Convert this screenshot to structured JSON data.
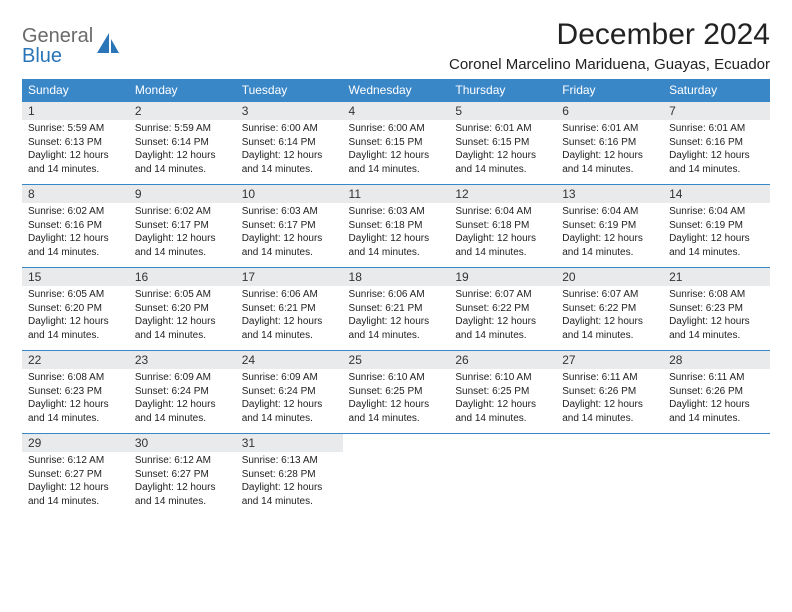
{
  "logo": {
    "line1": "General",
    "line2": "Blue"
  },
  "colors": {
    "header_bg": "#3a87c8",
    "header_fg": "#ffffff",
    "daynum_bg": "#e9eaec",
    "row_divider": "#3a87c8",
    "logo_gray": "#6a6a6a",
    "logo_blue": "#2a74b8"
  },
  "title": "December 2024",
  "location": "Coronel Marcelino Mariduena, Guayas, Ecuador",
  "weekdays": [
    "Sunday",
    "Monday",
    "Tuesday",
    "Wednesday",
    "Thursday",
    "Friday",
    "Saturday"
  ],
  "daylight_text": "Daylight: 12 hours and 14 minutes.",
  "days": [
    {
      "n": 1,
      "sr": "5:59 AM",
      "ss": "6:13 PM"
    },
    {
      "n": 2,
      "sr": "5:59 AM",
      "ss": "6:14 PM"
    },
    {
      "n": 3,
      "sr": "6:00 AM",
      "ss": "6:14 PM"
    },
    {
      "n": 4,
      "sr": "6:00 AM",
      "ss": "6:15 PM"
    },
    {
      "n": 5,
      "sr": "6:01 AM",
      "ss": "6:15 PM"
    },
    {
      "n": 6,
      "sr": "6:01 AM",
      "ss": "6:16 PM"
    },
    {
      "n": 7,
      "sr": "6:01 AM",
      "ss": "6:16 PM"
    },
    {
      "n": 8,
      "sr": "6:02 AM",
      "ss": "6:16 PM"
    },
    {
      "n": 9,
      "sr": "6:02 AM",
      "ss": "6:17 PM"
    },
    {
      "n": 10,
      "sr": "6:03 AM",
      "ss": "6:17 PM"
    },
    {
      "n": 11,
      "sr": "6:03 AM",
      "ss": "6:18 PM"
    },
    {
      "n": 12,
      "sr": "6:04 AM",
      "ss": "6:18 PM"
    },
    {
      "n": 13,
      "sr": "6:04 AM",
      "ss": "6:19 PM"
    },
    {
      "n": 14,
      "sr": "6:04 AM",
      "ss": "6:19 PM"
    },
    {
      "n": 15,
      "sr": "6:05 AM",
      "ss": "6:20 PM"
    },
    {
      "n": 16,
      "sr": "6:05 AM",
      "ss": "6:20 PM"
    },
    {
      "n": 17,
      "sr": "6:06 AM",
      "ss": "6:21 PM"
    },
    {
      "n": 18,
      "sr": "6:06 AM",
      "ss": "6:21 PM"
    },
    {
      "n": 19,
      "sr": "6:07 AM",
      "ss": "6:22 PM"
    },
    {
      "n": 20,
      "sr": "6:07 AM",
      "ss": "6:22 PM"
    },
    {
      "n": 21,
      "sr": "6:08 AM",
      "ss": "6:23 PM"
    },
    {
      "n": 22,
      "sr": "6:08 AM",
      "ss": "6:23 PM"
    },
    {
      "n": 23,
      "sr": "6:09 AM",
      "ss": "6:24 PM"
    },
    {
      "n": 24,
      "sr": "6:09 AM",
      "ss": "6:24 PM"
    },
    {
      "n": 25,
      "sr": "6:10 AM",
      "ss": "6:25 PM"
    },
    {
      "n": 26,
      "sr": "6:10 AM",
      "ss": "6:25 PM"
    },
    {
      "n": 27,
      "sr": "6:11 AM",
      "ss": "6:26 PM"
    },
    {
      "n": 28,
      "sr": "6:11 AM",
      "ss": "6:26 PM"
    },
    {
      "n": 29,
      "sr": "6:12 AM",
      "ss": "6:27 PM"
    },
    {
      "n": 30,
      "sr": "6:12 AM",
      "ss": "6:27 PM"
    },
    {
      "n": 31,
      "sr": "6:13 AM",
      "ss": "6:28 PM"
    }
  ],
  "labels": {
    "sunrise": "Sunrise:",
    "sunset": "Sunset:"
  }
}
